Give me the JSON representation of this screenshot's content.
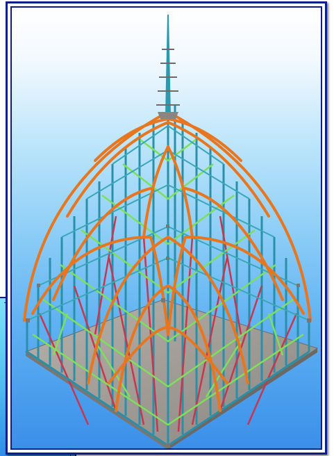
{
  "image": {
    "subject": "",
    "colors": {
      "frame_border": "#0b1e8c",
      "ribs": "#e8761e",
      "columns": "#2a8fa8",
      "braces_green": "#7ee05a",
      "braces_red": "#c8364e",
      "base_plate": "#9a9a9a",
      "sky_top": "#ffffff",
      "sky_bottom": "#3b8fe9"
    }
  }
}
